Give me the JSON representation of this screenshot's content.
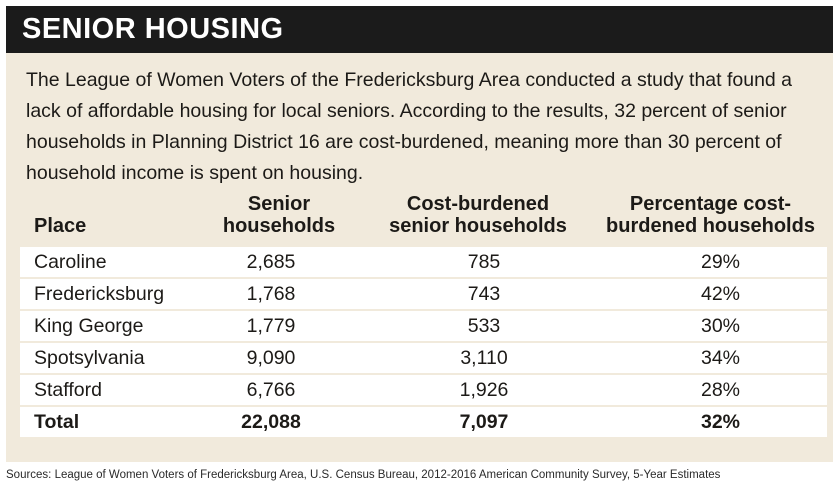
{
  "header": {
    "title": "SENIOR HOUSING"
  },
  "intro": {
    "text": "The League of Women Voters of the Fredericksburg Area conducted a study that found a lack of affordable housing for local seniors. According to the results, 32 percent of senior households in Planning District 16 are cost-burdened, meaning more than 30 percent of household income is spent on housing."
  },
  "table": {
    "columns": [
      "Place",
      "Senior households",
      "Cost-burdened senior households",
      "Percentage cost-burdened households"
    ],
    "rows": [
      [
        "Caroline",
        "2,685",
        "785",
        "29%"
      ],
      [
        "Fredericksburg",
        "1,768",
        "743",
        "42%"
      ],
      [
        "King George",
        "1,779",
        "533",
        "30%"
      ],
      [
        "Spotsylvania",
        "9,090",
        "3,110",
        "34%"
      ],
      [
        "Stafford",
        "6,766",
        "1,926",
        "28%"
      ],
      [
        "Total",
        "22,088",
        "7,097",
        "32%"
      ]
    ]
  },
  "source": {
    "text": "Sources: League of Women Voters of Fredericksburg Area, U.S. Census Bureau, 2012-2016 American Community Survey, 5-Year Estimates"
  },
  "colors": {
    "banner": "#1b1b1b",
    "panel": "#f1eadc",
    "row": "#ffffff"
  }
}
